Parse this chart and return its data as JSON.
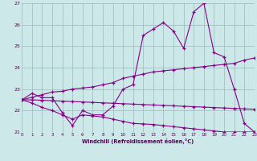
{
  "background_color": "#cce8e8",
  "line_color": "#880088",
  "grid_color": "#99bbbb",
  "xlabel": "Windchill (Refroidissement éolien,°C)",
  "hours": [
    0,
    1,
    2,
    3,
    4,
    5,
    6,
    7,
    8,
    9,
    10,
    11,
    12,
    13,
    14,
    15,
    16,
    17,
    18,
    19,
    20,
    21,
    22,
    23
  ],
  "line1": [
    22.5,
    22.8,
    22.6,
    22.6,
    21.9,
    21.3,
    22.0,
    21.8,
    21.8,
    22.2,
    23.0,
    23.2,
    25.5,
    25.8,
    26.1,
    25.7,
    24.9,
    26.6,
    27.0,
    24.7,
    24.5,
    23.0,
    21.4,
    21.0
  ],
  "line2": [
    22.5,
    22.5,
    22.48,
    22.46,
    22.44,
    22.42,
    22.4,
    22.38,
    22.36,
    22.34,
    22.32,
    22.3,
    22.28,
    22.26,
    22.24,
    22.22,
    22.2,
    22.18,
    22.16,
    22.14,
    22.12,
    22.1,
    22.08,
    22.06
  ],
  "line3": [
    22.5,
    22.62,
    22.74,
    22.86,
    22.9,
    23.0,
    23.05,
    23.1,
    23.2,
    23.3,
    23.5,
    23.6,
    23.7,
    23.8,
    23.85,
    23.9,
    23.95,
    24.0,
    24.05,
    24.1,
    24.15,
    24.2,
    24.35,
    24.45
  ],
  "line4": [
    22.5,
    22.35,
    22.15,
    22.0,
    21.8,
    21.6,
    21.8,
    21.75,
    21.7,
    21.6,
    21.5,
    21.4,
    21.38,
    21.35,
    21.3,
    21.25,
    21.2,
    21.15,
    21.1,
    21.05,
    21.0,
    21.0,
    21.0,
    21.0
  ],
  "ylim": [
    21,
    27
  ],
  "xlim": [
    0,
    23
  ],
  "yticks": [
    21,
    22,
    23,
    24,
    25,
    26,
    27
  ],
  "xticks": [
    0,
    1,
    2,
    3,
    4,
    5,
    6,
    7,
    8,
    9,
    10,
    11,
    12,
    13,
    14,
    15,
    16,
    17,
    18,
    19,
    20,
    21,
    22,
    23
  ]
}
